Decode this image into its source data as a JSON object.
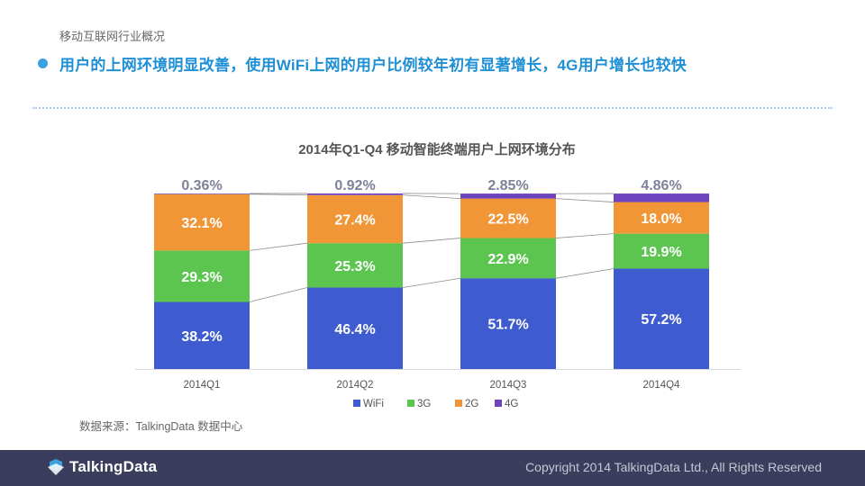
{
  "header": {
    "section": "移动互联网行业概况",
    "headline": "用户的上网环境明显改善，使用WiFi上网的用户比例较年初有显著增长，4G用户增长也较快"
  },
  "chart_data": {
    "type": "bar",
    "stacked": true,
    "title": "2014年Q1-Q4 移动智能终端用户上网环境分布",
    "categories": [
      "2014Q1",
      "2014Q2",
      "2014Q3",
      "2014Q4"
    ],
    "series": [
      {
        "name": "WiFi",
        "color": "#3e5cd0",
        "values": [
          38.2,
          46.4,
          51.7,
          57.2
        ],
        "labels": [
          "38.2%",
          "46.4%",
          "51.7%",
          "57.2%"
        ]
      },
      {
        "name": "3G",
        "color": "#5cc54f",
        "values": [
          29.3,
          25.3,
          22.9,
          19.9
        ],
        "labels": [
          "29.3%",
          "25.3%",
          "22.9%",
          "19.9%"
        ]
      },
      {
        "name": "2G",
        "color": "#f19637",
        "values": [
          32.1,
          27.4,
          22.5,
          18.0
        ],
        "labels": [
          "32.1%",
          "27.4%",
          "22.5%",
          "18.0%"
        ]
      },
      {
        "name": "4G",
        "color": "#6f43c0",
        "values": [
          0.36,
          0.92,
          2.85,
          4.86
        ],
        "labels": [
          "0.36%",
          "0.92%",
          "2.85%",
          "4.86%"
        ]
      }
    ],
    "ylim": [
      0,
      100
    ],
    "legend": "bottom",
    "series_lines": true
  },
  "source": "数据来源：TalkingData 数据中心",
  "footer": {
    "logo": "TalkingData",
    "copyright": "Copyright 2014 TalkingData Ltd., All Rights Reserved"
  }
}
